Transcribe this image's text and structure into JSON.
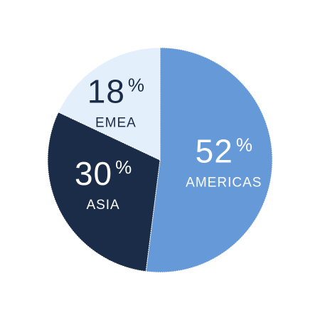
{
  "chart_data": {
    "type": "pie",
    "categories": [
      "AMERICAS",
      "ASIA",
      "EMEA"
    ],
    "values": [
      52,
      30,
      18
    ],
    "percent_sign": "%",
    "colors": [
      "#6699d8",
      "#1a2c47",
      "#e4effc"
    ],
    "label_colors": [
      "#ffffff",
      "#ffffff",
      "#1a2c47"
    ],
    "start_angle_deg": 0,
    "direction": "clockwise",
    "legend": "none"
  }
}
